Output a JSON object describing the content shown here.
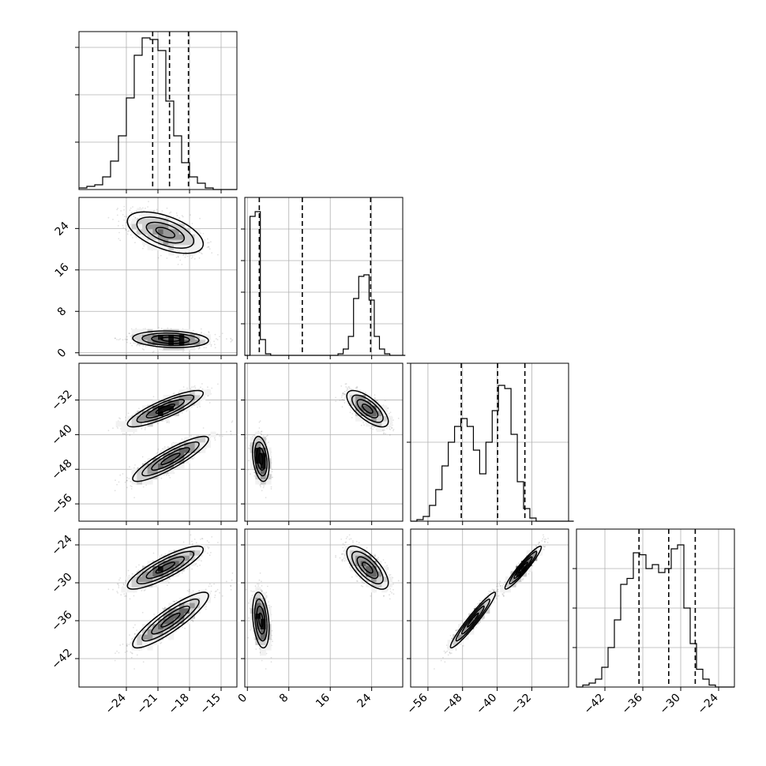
{
  "chart_data": {
    "type": "corner",
    "title": "",
    "params": [
      {
        "name": "",
        "range": [
          -28.5,
          -13.5
        ],
        "ticks": [
          -24,
          -21,
          -18,
          -15
        ],
        "tick_labels": [
          "−24",
          "−21",
          "−18",
          "−15"
        ],
        "quantiles": [
          -21.5,
          -19.9,
          -18.1
        ],
        "hist_edges_start": -28.5,
        "hist_bin_width": 0.75,
        "hist_counts": [
          1,
          2,
          3,
          8,
          18,
          34,
          58,
          85,
          96,
          95,
          88,
          56,
          34,
          17,
          8,
          4,
          1,
          0,
          0,
          0
        ],
        "hist_ylim": [
          0,
          100
        ],
        "hist_yticks": [
          30,
          60,
          90
        ]
      },
      {
        "name": "",
        "range": [
          -0.5,
          30
        ],
        "ticks": [
          0,
          8,
          16,
          24
        ],
        "tick_labels": [
          "0",
          "8",
          "16",
          "24"
        ],
        "quantiles": [
          2.3,
          10.6,
          23.8
        ],
        "hist_edges_start": -0.5,
        "hist_bin_width": 1.0,
        "hist_counts": [
          0,
          88,
          91,
          10,
          1,
          0,
          0,
          0,
          0,
          0,
          0,
          0,
          0,
          0,
          0,
          0,
          0,
          0,
          1,
          4,
          12,
          36,
          50,
          51,
          35,
          12,
          4,
          1,
          0,
          0,
          0
        ],
        "hist_ylim": [
          0,
          100
        ],
        "hist_yticks": [
          20,
          40,
          60,
          80
        ]
      },
      {
        "name": "",
        "range": [
          -60,
          -23.5
        ],
        "ticks": [
          -56,
          -48,
          -40,
          -32
        ],
        "tick_labels": [
          "−56",
          "−48",
          "−40",
          "−32"
        ],
        "quantiles": [
          -48.3,
          -39.9,
          -33.6
        ],
        "hist_edges_start": -60,
        "hist_bin_width": 1.45,
        "hist_counts": [
          0,
          1,
          3,
          10,
          20,
          35,
          50,
          60,
          65,
          60,
          45,
          30,
          50,
          70,
          86,
          84,
          55,
          25,
          8,
          2,
          0,
          0,
          0,
          0,
          0,
          0
        ],
        "hist_ylim": [
          0,
          100
        ],
        "hist_yticks": [
          50,
          100
        ]
      },
      {
        "name": "",
        "range": [
          -46.5,
          -21.5
        ],
        "ticks": [
          -42,
          -36,
          -30,
          -24
        ],
        "tick_labels": [
          "−42",
          "−36",
          "−30",
          "−24"
        ],
        "quantiles": [
          -36.6,
          -31.9,
          -27.7
        ],
        "hist_edges_start": -46.5,
        "hist_bin_width": 1.0,
        "hist_counts": [
          0,
          1,
          2,
          4,
          10,
          20,
          34,
          52,
          55,
          68,
          67,
          60,
          62,
          58,
          60,
          70,
          72,
          40,
          22,
          9,
          4,
          1,
          0,
          0,
          0
        ],
        "hist_ylim": [
          0,
          80
        ],
        "hist_yticks": [
          20,
          40,
          60
        ]
      }
    ],
    "clusters": [
      {
        "mean": [
          -20.3,
          23.2,
          -34.0,
          -27.6
        ],
        "std": [
          1.8,
          2.0,
          2.1,
          1.7
        ],
        "corr": [
          [
            1.0,
            -0.55,
            0.85,
            0.85
          ],
          [
            -0.55,
            1.0,
            -0.7,
            -0.7
          ],
          [
            0.85,
            -0.7,
            1.0,
            0.95
          ],
          [
            0.85,
            -0.7,
            0.95,
            1.0
          ]
        ]
      },
      {
        "mean": [
          -19.8,
          2.6,
          -45.6,
          -35.9
        ],
        "std": [
          1.8,
          0.8,
          2.6,
          2.2
        ],
        "corr": [
          [
            1.0,
            -0.15,
            0.88,
            0.88
          ],
          [
            -0.15,
            1.0,
            -0.3,
            -0.3
          ],
          [
            0.88,
            -0.3,
            1.0,
            0.96
          ],
          [
            0.88,
            -0.3,
            0.96,
            1.0
          ]
        ]
      }
    ],
    "grid": true,
    "quantile_lines": "dashed",
    "hist_color": "#000000",
    "point_color": "#000000"
  }
}
